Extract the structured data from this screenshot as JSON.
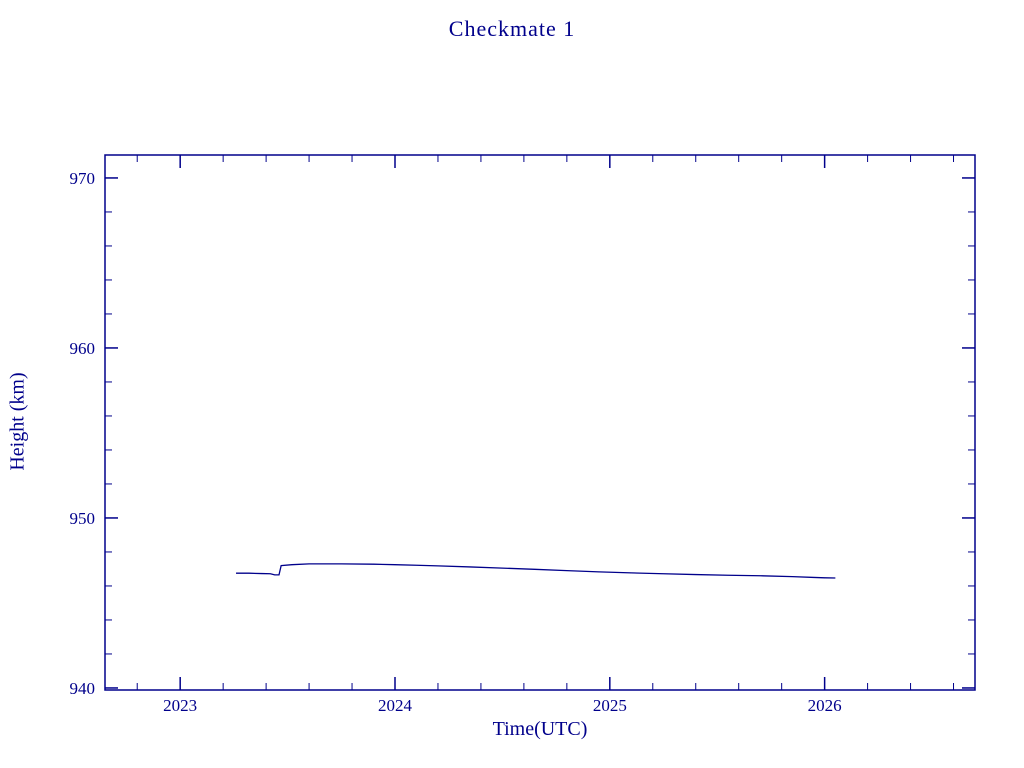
{
  "title": "Checkmate 1",
  "colors": {
    "line": "#00008B",
    "axis": "#00008B",
    "text": "#00008B",
    "background": "#ffffff"
  },
  "chart_data": {
    "type": "line",
    "title": "Checkmate 1",
    "xlabel": "Time(UTC)",
    "ylabel": "Height (km)",
    "xlim": [
      2022.65,
      2026.7
    ],
    "ylim": [
      939.88,
      971.35
    ],
    "xticks": [
      2023,
      2024,
      2025,
      2026
    ],
    "xtick_labels": [
      "2023",
      "2024",
      "2025",
      "2026"
    ],
    "yticks": [
      940,
      950,
      960,
      970
    ],
    "ytick_labels": [
      "940",
      "950",
      "960",
      "970"
    ],
    "x_minor_step": 0.2,
    "y_minor_step": 2,
    "grid": false,
    "legend": null,
    "series": [
      {
        "name": "height",
        "x": [
          2023.26,
          2023.32,
          2023.38,
          2023.42,
          2023.44,
          2023.46,
          2023.47,
          2023.52,
          2023.6,
          2023.75,
          2023.9,
          2024.0,
          2024.1,
          2024.2,
          2024.35,
          2024.5,
          2024.65,
          2024.8,
          2024.95,
          2025.1,
          2025.25,
          2025.4,
          2025.55,
          2025.7,
          2025.85,
          2025.95,
          2026.0,
          2026.05
        ],
        "y": [
          946.75,
          946.75,
          946.73,
          946.72,
          946.65,
          946.65,
          947.2,
          947.25,
          947.3,
          947.3,
          947.28,
          947.25,
          947.22,
          947.18,
          947.12,
          947.05,
          946.98,
          946.9,
          946.83,
          946.77,
          946.72,
          946.67,
          946.63,
          946.6,
          946.55,
          946.5,
          946.48,
          946.47
        ]
      }
    ]
  }
}
